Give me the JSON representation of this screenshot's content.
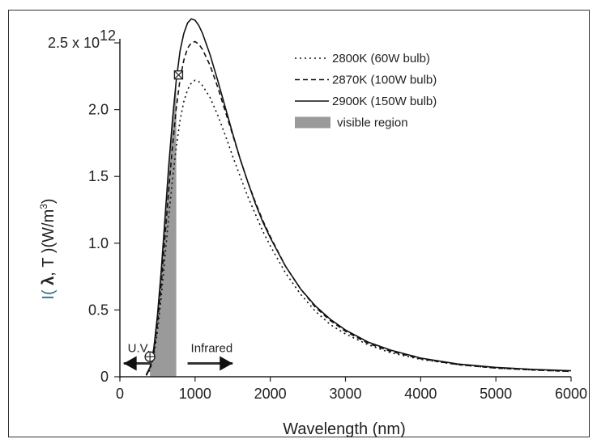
{
  "chart_data": {
    "type": "line",
    "xlabel": "Wavelength (nm)",
    "ylabel": "I(λ, T) (W/m³)",
    "ylabel_parts": {
      "pre": "I( ",
      "lambda": "λ",
      "mid": ", T )(W/m",
      "sup": "3",
      "post": ")"
    },
    "xlim": [
      0,
      6000
    ],
    "ylim": [
      0,
      2.7
    ],
    "x_ticks": [
      0,
      1000,
      2000,
      3000,
      4000,
      5000,
      6000
    ],
    "x_tick_labels": [
      "0",
      "1000",
      "2000",
      "3000",
      "4000",
      "5000",
      "6000"
    ],
    "y_ticks": [
      0,
      0.5,
      1.0,
      1.5,
      2.0,
      2.5
    ],
    "y_tick_labels": [
      "0",
      "0.5",
      "1.0",
      "1.5",
      "2.0",
      "2.5 x 10"
    ],
    "y_exponent": "12",
    "grid": false,
    "legend_position": "top-right",
    "series": [
      {
        "name": "2800K (60W bulb)",
        "style": "dotted",
        "points": [
          [
            350,
            0.01
          ],
          [
            400,
            0.05
          ],
          [
            450,
            0.15
          ],
          [
            500,
            0.34
          ],
          [
            550,
            0.6
          ],
          [
            600,
            0.9
          ],
          [
            650,
            1.2
          ],
          [
            700,
            1.48
          ],
          [
            750,
            1.72
          ],
          [
            800,
            1.92
          ],
          [
            850,
            2.06
          ],
          [
            900,
            2.15
          ],
          [
            950,
            2.2
          ],
          [
            1000,
            2.22
          ],
          [
            1050,
            2.21
          ],
          [
            1100,
            2.18
          ],
          [
            1200,
            2.09
          ],
          [
            1300,
            1.96
          ],
          [
            1400,
            1.81
          ],
          [
            1500,
            1.65
          ],
          [
            1600,
            1.5
          ],
          [
            1700,
            1.35
          ],
          [
            1800,
            1.22
          ],
          [
            1900,
            1.09
          ],
          [
            2000,
            0.98
          ],
          [
            2200,
            0.78
          ],
          [
            2400,
            0.62
          ],
          [
            2600,
            0.49
          ],
          [
            2800,
            0.39
          ],
          [
            3000,
            0.32
          ],
          [
            3300,
            0.24
          ],
          [
            3600,
            0.18
          ],
          [
            4000,
            0.13
          ],
          [
            4500,
            0.09
          ],
          [
            5000,
            0.065
          ],
          [
            5500,
            0.05
          ],
          [
            6000,
            0.04
          ]
        ]
      },
      {
        "name": "2870K (100W bulb)",
        "style": "dashed",
        "points": [
          [
            350,
            0.01
          ],
          [
            400,
            0.06
          ],
          [
            450,
            0.18
          ],
          [
            500,
            0.4
          ],
          [
            550,
            0.7
          ],
          [
            600,
            1.05
          ],
          [
            650,
            1.4
          ],
          [
            700,
            1.73
          ],
          [
            750,
            2.01
          ],
          [
            800,
            2.23
          ],
          [
            850,
            2.37
          ],
          [
            900,
            2.46
          ],
          [
            950,
            2.5
          ],
          [
            1000,
            2.51
          ],
          [
            1050,
            2.49
          ],
          [
            1100,
            2.45
          ],
          [
            1200,
            2.33
          ],
          [
            1300,
            2.17
          ],
          [
            1400,
            1.99
          ],
          [
            1500,
            1.81
          ],
          [
            1600,
            1.63
          ],
          [
            1700,
            1.46
          ],
          [
            1800,
            1.31
          ],
          [
            1900,
            1.17
          ],
          [
            2000,
            1.05
          ],
          [
            2200,
            0.83
          ],
          [
            2400,
            0.66
          ],
          [
            2600,
            0.52
          ],
          [
            2800,
            0.42
          ],
          [
            3000,
            0.34
          ],
          [
            3300,
            0.25
          ],
          [
            3600,
            0.19
          ],
          [
            4000,
            0.135
          ],
          [
            4500,
            0.09
          ],
          [
            5000,
            0.065
          ],
          [
            5500,
            0.05
          ],
          [
            6000,
            0.04
          ]
        ]
      },
      {
        "name": "2900K (150W bulb)",
        "style": "solid",
        "points": [
          [
            350,
            0.015
          ],
          [
            400,
            0.07
          ],
          [
            450,
            0.21
          ],
          [
            500,
            0.46
          ],
          [
            550,
            0.8
          ],
          [
            600,
            1.19
          ],
          [
            650,
            1.58
          ],
          [
            700,
            1.93
          ],
          [
            750,
            2.22
          ],
          [
            800,
            2.44
          ],
          [
            850,
            2.57
          ],
          [
            900,
            2.65
          ],
          [
            950,
            2.68
          ],
          [
            1000,
            2.67
          ],
          [
            1050,
            2.63
          ],
          [
            1100,
            2.57
          ],
          [
            1200,
            2.41
          ],
          [
            1300,
            2.22
          ],
          [
            1400,
            2.02
          ],
          [
            1500,
            1.82
          ],
          [
            1600,
            1.63
          ],
          [
            1700,
            1.46
          ],
          [
            1800,
            1.3
          ],
          [
            1900,
            1.16
          ],
          [
            2000,
            1.04
          ],
          [
            2200,
            0.83
          ],
          [
            2400,
            0.66
          ],
          [
            2600,
            0.53
          ],
          [
            2800,
            0.43
          ],
          [
            3000,
            0.35
          ],
          [
            3300,
            0.26
          ],
          [
            3600,
            0.2
          ],
          [
            4000,
            0.14
          ],
          [
            4500,
            0.095
          ],
          [
            5000,
            0.07
          ],
          [
            5500,
            0.055
          ],
          [
            6000,
            0.045
          ]
        ]
      }
    ],
    "visible_region": {
      "label": "visible region",
      "x_range": [
        400,
        750
      ],
      "color": "#9a9a9a"
    },
    "annotations": [
      {
        "text": "U.V.",
        "arrow": "left",
        "x_from": 400,
        "x_to": 50,
        "y": 0.1
      },
      {
        "text": "Infrared",
        "arrow": "right",
        "x_from": 900,
        "x_to": 1500,
        "y": 0.1
      }
    ],
    "markers": [
      {
        "shape": "circle-cross",
        "x": 400,
        "y": 0.15
      },
      {
        "shape": "square-x",
        "x": 780,
        "y": 2.26
      }
    ]
  }
}
